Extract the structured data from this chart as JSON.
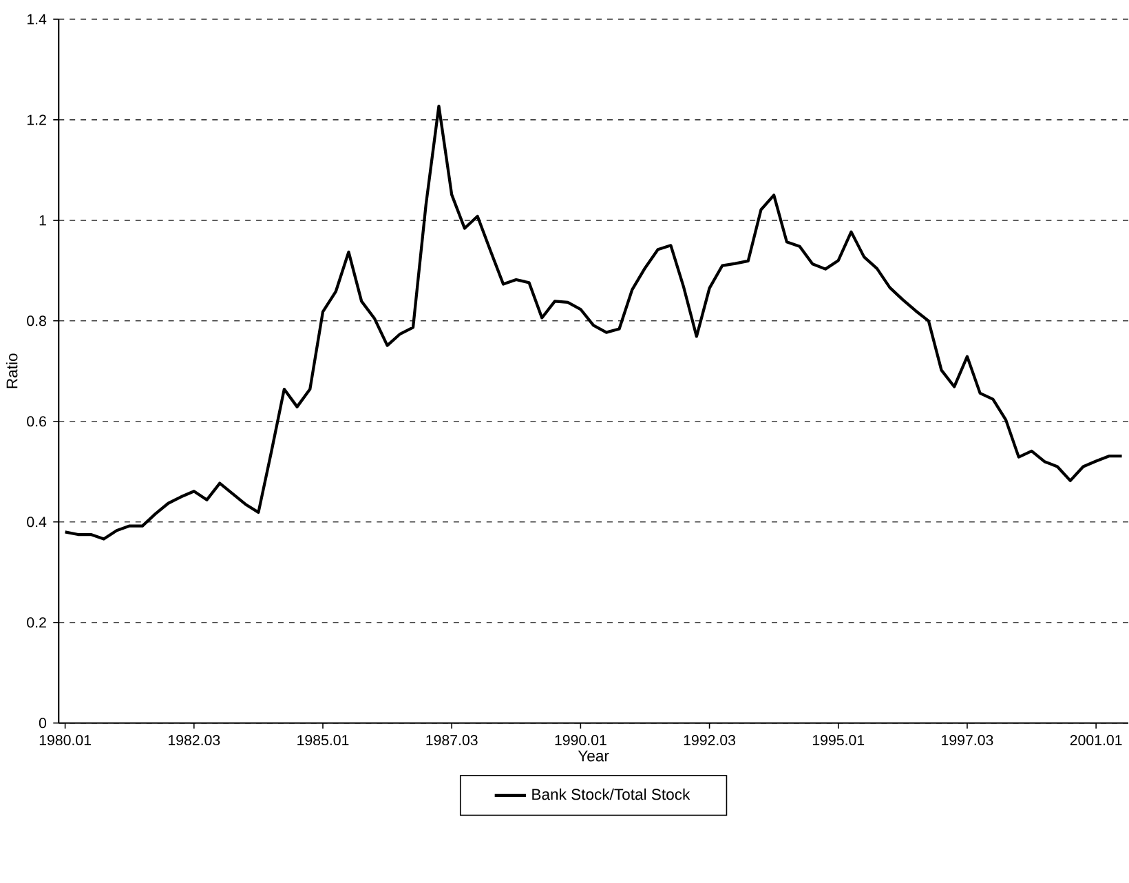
{
  "chart_data": {
    "type": "line",
    "xlabel": "Year",
    "ylabel": "Ratio",
    "categories": [
      "1980.01",
      null,
      null,
      null,
      null,
      null,
      null,
      null,
      null,
      null,
      "1982.03",
      null,
      null,
      null,
      null,
      null,
      null,
      null,
      null,
      null,
      "1985.01",
      null,
      null,
      null,
      null,
      null,
      null,
      null,
      null,
      null,
      "1987.03",
      null,
      null,
      null,
      null,
      null,
      null,
      null,
      null,
      null,
      "1990.01",
      null,
      null,
      null,
      null,
      null,
      null,
      null,
      null,
      null,
      "1992.03",
      null,
      null,
      null,
      null,
      null,
      null,
      null,
      null,
      null,
      "1995.01",
      null,
      null,
      null,
      null,
      null,
      null,
      null,
      null,
      null,
      "1997.03",
      null,
      null,
      null,
      null,
      null,
      null,
      null,
      null,
      null,
      "2001.01",
      null,
      null
    ],
    "series": [
      {
        "name": "Bank Stock/Total Stock",
        "color": "#000000",
        "values": [
          0.38,
          0.375,
          0.375,
          0.366,
          0.383,
          0.392,
          0.392,
          0.416,
          0.437,
          0.45,
          0.461,
          0.444,
          0.477,
          0.456,
          0.435,
          0.419,
          0.539,
          0.664,
          0.629,
          0.664,
          0.818,
          0.858,
          0.937,
          0.839,
          0.805,
          0.751,
          0.774,
          0.787,
          1.031,
          1.227,
          1.051,
          0.984,
          1.008,
          0.94,
          0.873,
          0.882,
          0.876,
          0.806,
          0.839,
          0.837,
          0.823,
          0.791,
          0.777,
          0.784,
          0.862,
          0.905,
          0.942,
          0.95,
          0.867,
          0.769,
          0.865,
          0.91,
          0.914,
          0.919,
          1.021,
          1.05,
          0.957,
          0.948,
          0.913,
          0.903,
          0.92,
          0.977,
          0.927,
          0.904,
          0.866,
          0.842,
          0.82,
          0.8,
          0.702,
          0.669,
          0.729,
          0.656,
          0.644,
          0.603,
          0.529,
          0.541,
          0.52,
          0.51,
          0.482,
          0.51,
          0.521,
          0.531,
          0.531
        ]
      }
    ],
    "ylim": [
      0,
      1.4
    ],
    "yticks": [
      0,
      0.2,
      0.4,
      0.6,
      0.8,
      1,
      1.2,
      1.4
    ],
    "grid": "y",
    "legend": "bottom",
    "marker": "none",
    "line_style": "solid"
  }
}
